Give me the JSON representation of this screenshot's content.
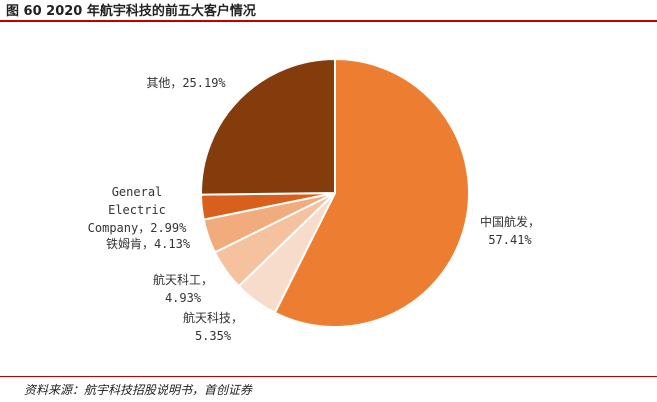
{
  "figure": {
    "title": "图 60 2020 年航宇科技的前五大客户情况",
    "source": "资料来源：航宇科技招股说明书，首创证券"
  },
  "chart_data": {
    "type": "pie",
    "title": "",
    "slices": [
      {
        "label": "中国航发",
        "value": 57.41,
        "value_text": "57.41%",
        "color": "#ed7d31"
      },
      {
        "label": "航天科技",
        "value": 5.35,
        "value_text": "5.35%",
        "color": "#f8dccb"
      },
      {
        "label": "航天科工",
        "value": 4.93,
        "value_text": "4.93%",
        "color": "#f5c19f"
      },
      {
        "label": "铁姆肯",
        "value": 4.13,
        "value_text": "4.13%",
        "color": "#f2ab7c"
      },
      {
        "label": "General Electric Company",
        "value": 2.99,
        "value_text": "2.99%",
        "color": "#d9601c"
      },
      {
        "label": "其他",
        "value": 25.19,
        "value_text": "25.19%",
        "color": "#843c0c"
      }
    ],
    "label_lines": [
      [
        "中国航发，",
        "57.41%"
      ],
      [
        "航天科技，",
        "5.35%"
      ],
      [
        "航天科工，",
        "4.93%"
      ],
      [
        "铁姆肯，4.13%"
      ],
      [
        "General",
        "Electric",
        "Company，2.99%"
      ],
      [
        "其他，25.19%"
      ]
    ]
  }
}
